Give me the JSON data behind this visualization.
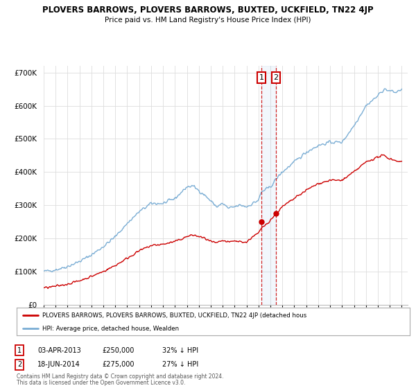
{
  "title": "PLOVERS BARROWS, PLOVERS BARROWS, BUXTED, UCKFIELD, TN22 4JP",
  "subtitle": "Price paid vs. HM Land Registry's House Price Index (HPI)",
  "ylim": [
    0,
    720000
  ],
  "yticks": [
    0,
    100000,
    200000,
    300000,
    400000,
    500000,
    600000,
    700000
  ],
  "ytick_labels": [
    "£0",
    "£100K",
    "£200K",
    "£300K",
    "£400K",
    "£500K",
    "£600K",
    "£700K"
  ],
  "hpi_color": "#7aadd4",
  "price_color": "#cc0000",
  "marker_color": "#cc0000",
  "transaction1": {
    "date_label": "03-APR-2013",
    "price": 250000,
    "pct": "32% ↓ HPI",
    "x_year": 2013.25
  },
  "transaction2": {
    "date_label": "18-JUN-2014",
    "price": 275000,
    "pct": "27% ↓ HPI",
    "x_year": 2014.46
  },
  "legend_label_price": "PLOVERS BARROWS, PLOVERS BARROWS, BUXTED, UCKFIELD, TN22 4JP (detached hous",
  "legend_label_hpi": "HPI: Average price, detached house, Wealden",
  "footer1": "Contains HM Land Registry data © Crown copyright and database right 2024.",
  "footer2": "This data is licensed under the Open Government Licence v3.0.",
  "table_rows": [
    {
      "num": "1",
      "date": "03-APR-2013",
      "price": "£250,000",
      "pct": "32% ↓ HPI"
    },
    {
      "num": "2",
      "date": "18-JUN-2014",
      "price": "£275,000",
      "pct": "27% ↓ HPI"
    }
  ],
  "xmin": 1995,
  "xmax": 2025.5,
  "background_color": "#ffffff",
  "grid_color": "#dddddd"
}
